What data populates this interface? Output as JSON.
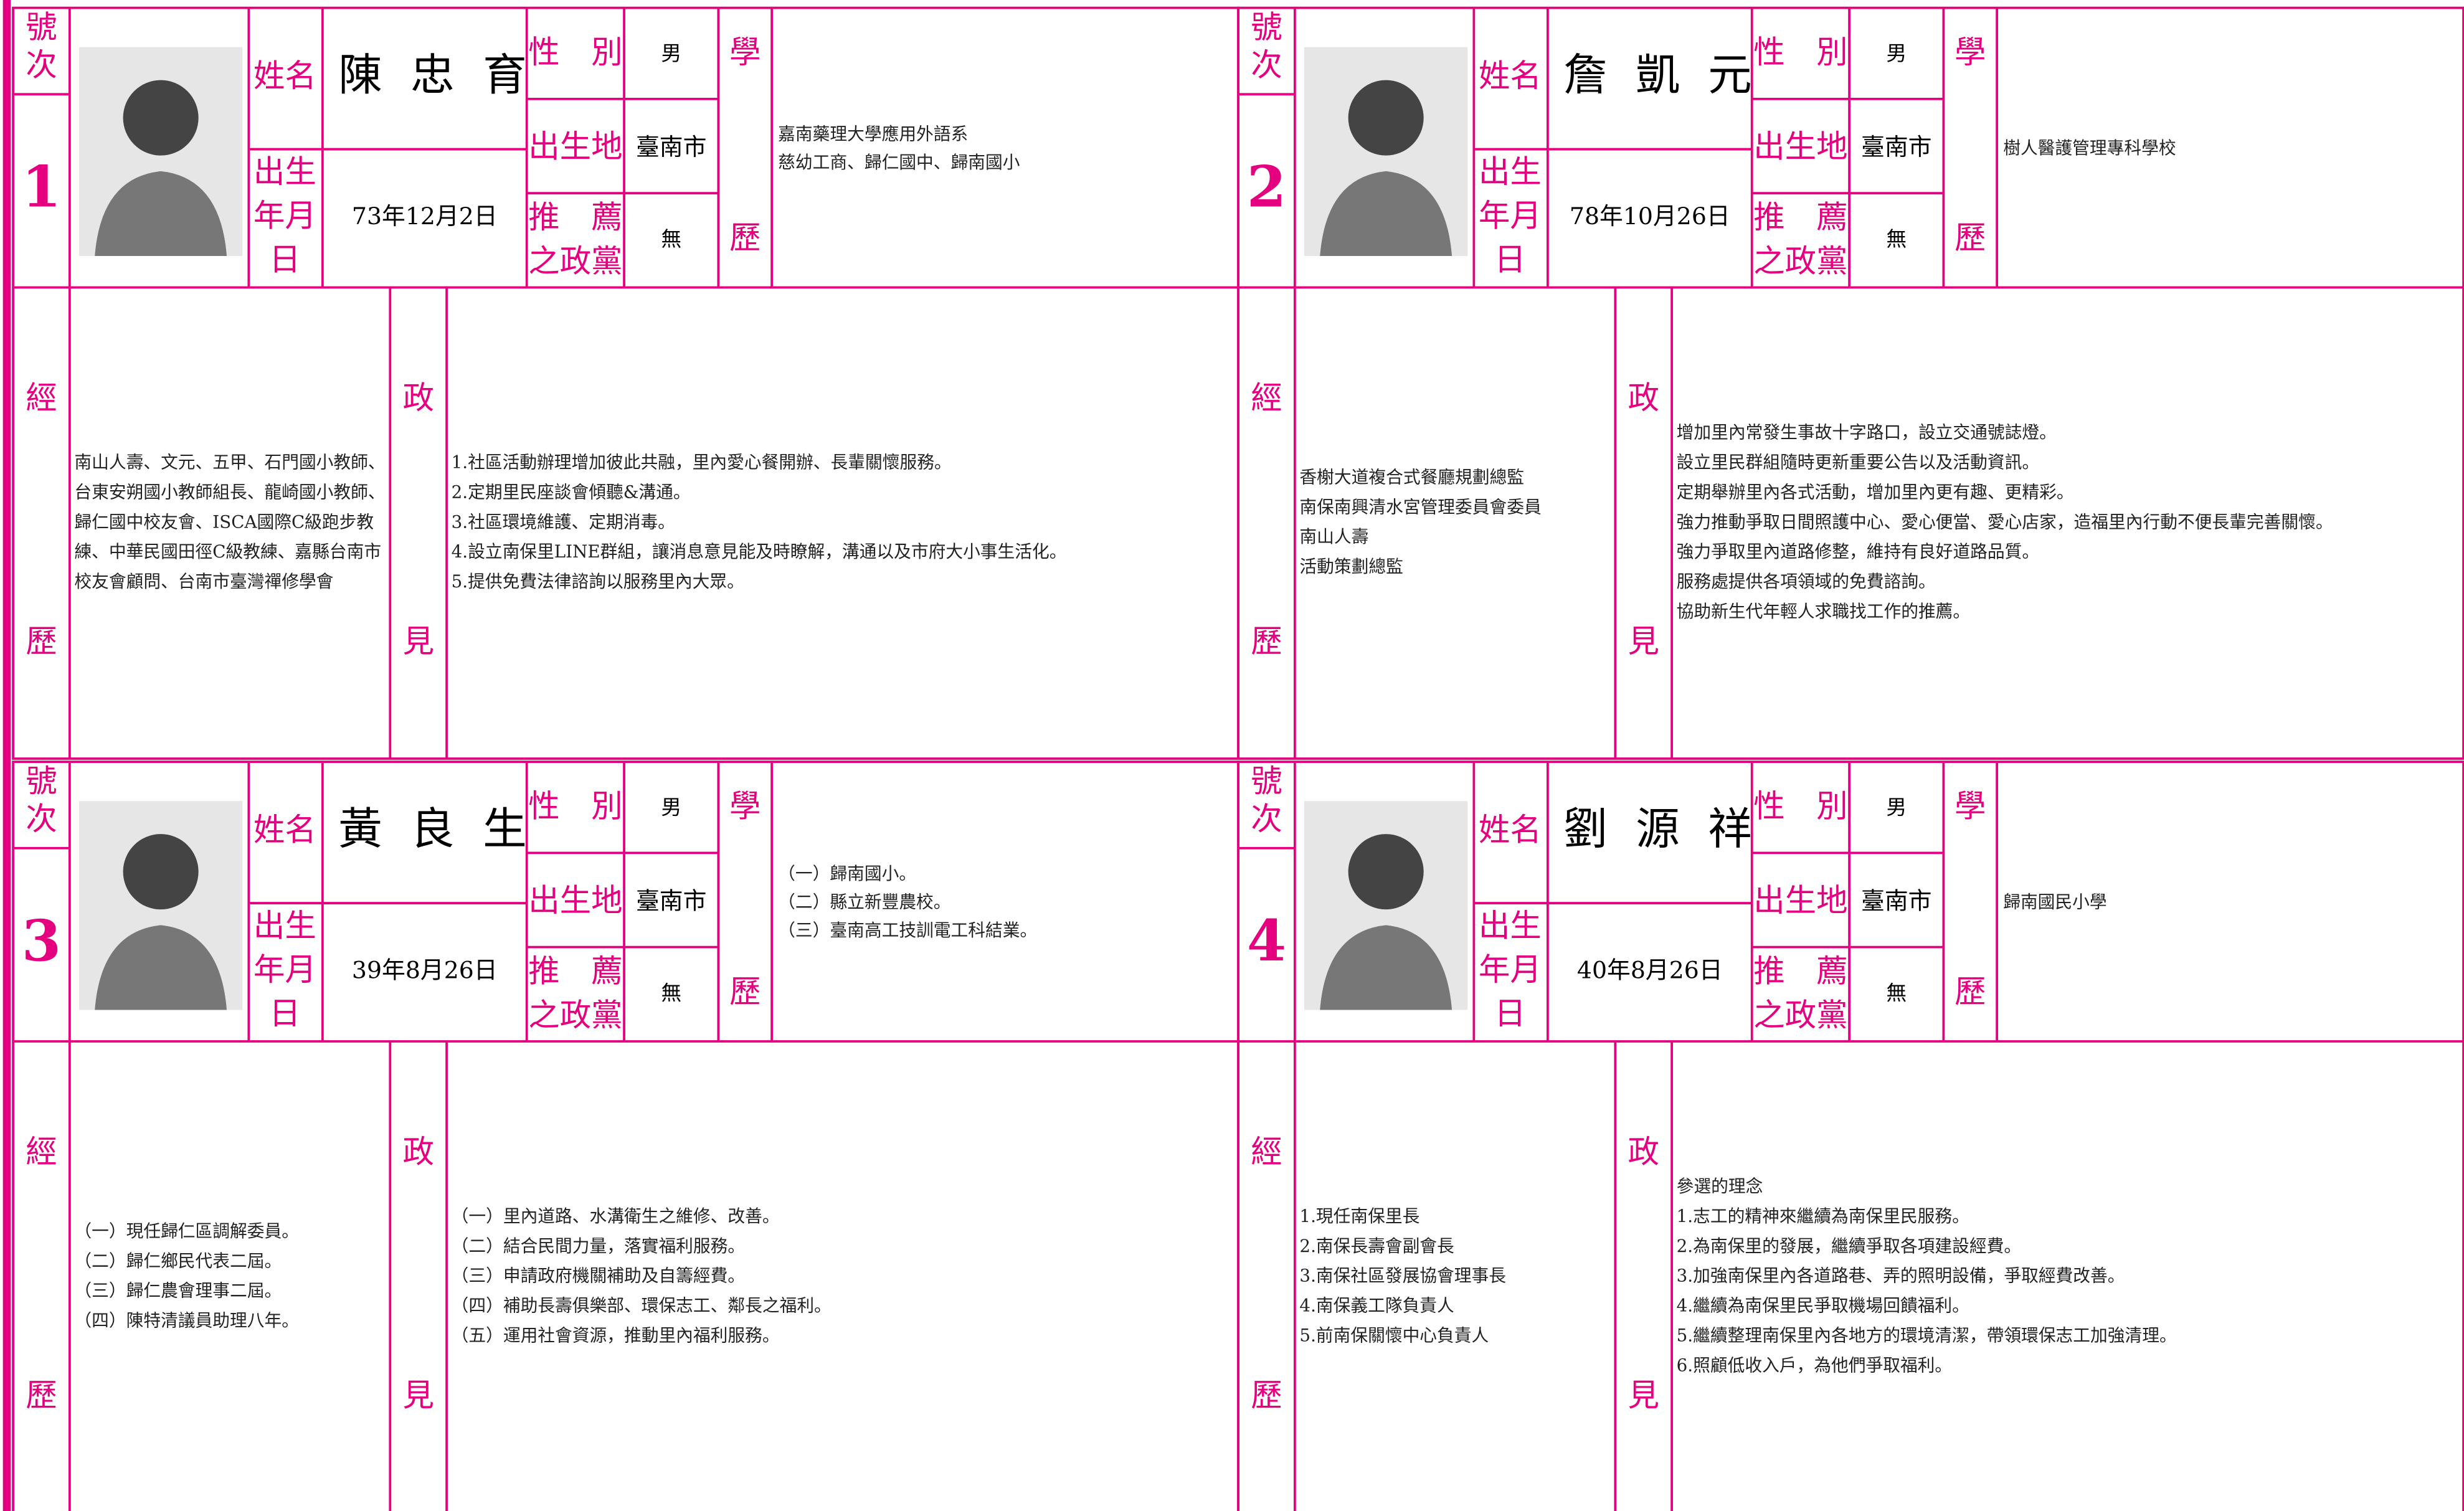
{
  "labels": {
    "number": [
      "號",
      "次"
    ],
    "name": "姓名",
    "gender": "性　別",
    "birthplace": "出生地",
    "birthdate": [
      "出生",
      "年月",
      "日"
    ],
    "party": [
      "推　薦",
      "之政黨"
    ],
    "education": [
      "學",
      "歷"
    ],
    "experience": [
      "經",
      "歷"
    ],
    "platform": [
      "政",
      "見"
    ]
  },
  "candidates": [
    {
      "number": "1",
      "name": "陳忠育",
      "gender": "男",
      "birthplace": "臺南市",
      "birthdate": "73年12月2日",
      "party": "無",
      "education": [
        "嘉南藥理大學應用外語系",
        "慈幼工商、歸仁國中、歸南國小"
      ],
      "experience": [
        "南山人壽、文元、五甲、石門國小教師、",
        "台東安朔國小教師組長、龍崎國小教師、",
        "歸仁國中校友會、ISCA國際C級跑步教",
        "練、中華民國田徑C級教練、嘉縣台南市",
        "校友會顧問、台南市臺灣禪修學會"
      ],
      "platform": [
        "1.社區活動辦理增加彼此共融，里內愛心餐開辦、長輩關懷服務。",
        "2.定期里民座談會傾聽&溝通。",
        "3.社區環境維護、定期消毒。",
        "4.設立南保里LINE群組，讓消息意見能及時瞭解，溝通以及市府大小事生活化。",
        "5.提供免費法律諮詢以服務里內大眾。"
      ]
    },
    {
      "number": "2",
      "name": "詹凱元",
      "gender": "男",
      "birthplace": "臺南市",
      "birthdate": "78年10月26日",
      "party": "無",
      "education": [
        "樹人醫護管理專科學校"
      ],
      "experience": [
        "香榭大道複合式餐廳規劃總監",
        "南保南興清水宮管理委員會委員",
        "南山人壽",
        "活動策劃總監"
      ],
      "platform": [
        "增加里內常發生事故十字路口，設立交通號誌燈。",
        "設立里民群組隨時更新重要公告以及活動資訊。",
        "定期舉辦里內各式活動，增加里內更有趣、更精彩。",
        "強力推動爭取日間照護中心、愛心便當、愛心店家，造福里內行動不便長輩完善關懷。",
        "強力爭取里內道路修整，維持有良好道路品質。",
        "服務處提供各項領域的免費諮詢。",
        "協助新生代年輕人求職找工作的推薦。"
      ]
    },
    {
      "number": "3",
      "name": "黃良生",
      "gender": "男",
      "birthplace": "臺南市",
      "birthdate": "39年8月26日",
      "party": "無",
      "education": [
        "（一）歸南國小。",
        "（二）縣立新豐農校。",
        "（三）臺南高工技訓電工科結業。"
      ],
      "experience": [
        "（一）現任歸仁區調解委員。",
        "（二）歸仁鄉民代表二屆。",
        "（三）歸仁農會理事二屆。",
        "（四）陳特清議員助理八年。"
      ],
      "platform": [
        "（一）里內道路、水溝衛生之維修、改善。",
        "（二）結合民間力量，落實福利服務。",
        "（三）申請政府機關補助及自籌經費。",
        "（四）補助長壽俱樂部、環保志工、鄰長之福利。",
        "（五）運用社會資源，推動里內福利服務。"
      ]
    },
    {
      "number": "4",
      "name": "劉源祥",
      "gender": "男",
      "birthplace": "臺南市",
      "birthdate": "40年8月26日",
      "party": "無",
      "education": [
        "歸南國民小學"
      ],
      "experience": [
        "1.現任南保里長",
        "2.南保長壽會副會長",
        "3.南保社區發展協會理事長",
        "4.南保義工隊負責人",
        "5.前南保關懷中心負責人"
      ],
      "platform": [
        "參選的理念",
        "1.志工的精神來繼續為南保里民服務。",
        "2.為南保里的發展，繼續爭取各項建設經費。",
        "3.加強南保里內各道路巷、弄的照明設備，爭取經費改善。",
        "4.繼續為南保里民爭取機場回饋福利。",
        "5.繼續整理南保里內各地方的環境清潔，帶領環保志工加強清理。",
        "6.照顧低收入戶，為他們爭取福利。"
      ]
    }
  ]
}
